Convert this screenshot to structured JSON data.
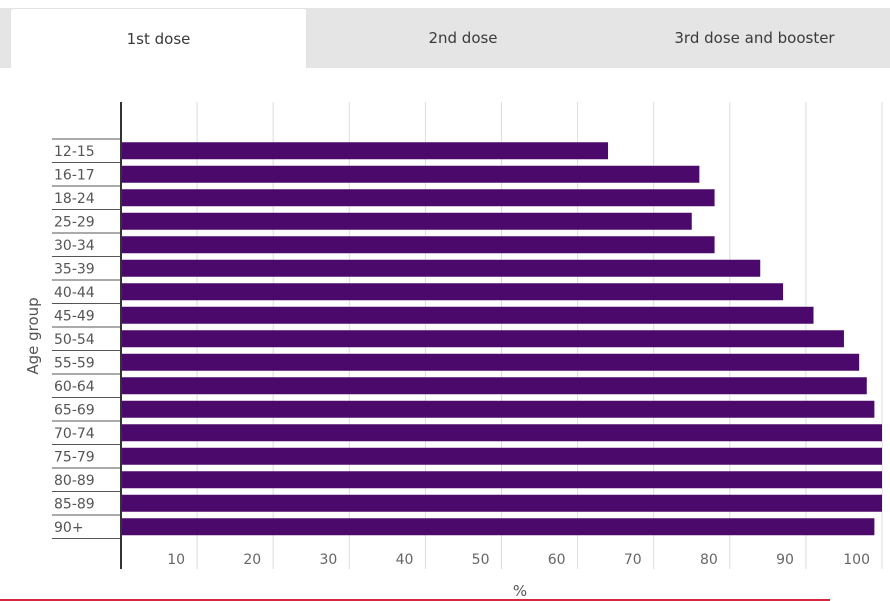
{
  "tabs": [
    {
      "label": "1st dose",
      "active": true
    },
    {
      "label": "2nd dose",
      "active": false
    },
    {
      "label": "3rd dose and booster",
      "active": false
    }
  ],
  "colors": {
    "bar": "#4b0a6b",
    "grid": "#dcdcdc",
    "axis": "#333333",
    "accent_line": "#d7263d"
  },
  "chart_data": {
    "type": "bar",
    "orientation": "horizontal",
    "xlabel": "%",
    "ylabel": "Age group",
    "xlim": [
      0,
      100
    ],
    "xticks": [
      10,
      20,
      30,
      40,
      50,
      60,
      70,
      80,
      90,
      100
    ],
    "grid": true,
    "categories": [
      "12-15",
      "16-17",
      "18-24",
      "25-29",
      "30-34",
      "35-39",
      "40-44",
      "45-49",
      "50-54",
      "55-59",
      "60-64",
      "65-69",
      "70-74",
      "75-79",
      "80-89",
      "85-89",
      "90+"
    ],
    "values": [
      64,
      76,
      78,
      75,
      78,
      84,
      87,
      91,
      95,
      97,
      98,
      99,
      100,
      100,
      100,
      100,
      99
    ]
  }
}
